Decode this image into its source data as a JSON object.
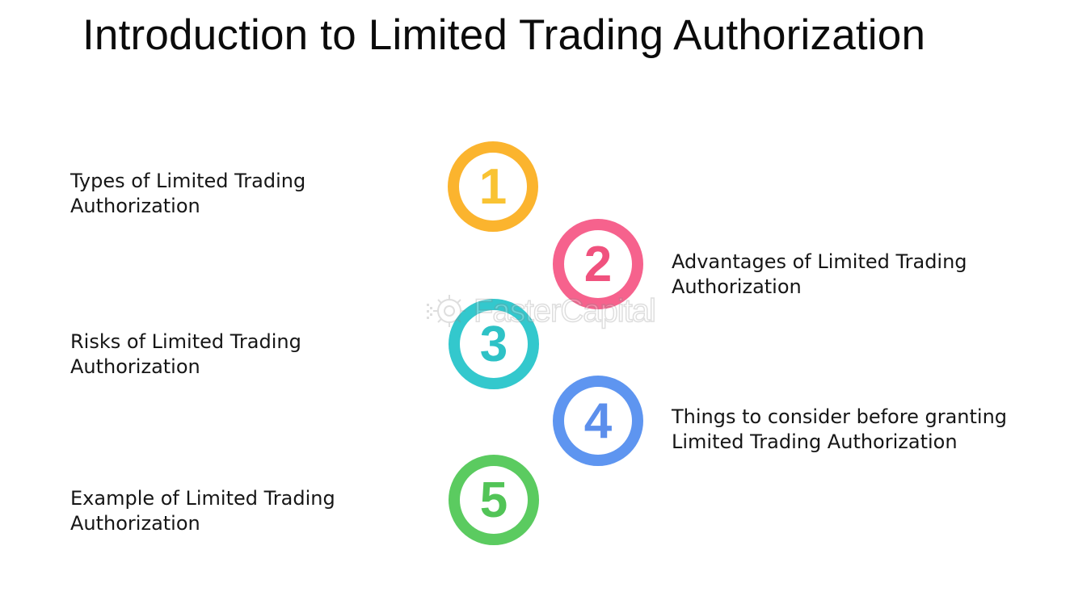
{
  "title": "Introduction to Limited Trading Authorization",
  "steps": [
    {
      "number": "1",
      "text": "Types of Limited Trading\nAuthorization",
      "color": "#FBB42E",
      "number_color": "#F9C333"
    },
    {
      "number": "2",
      "text": "Advantages of Limited Trading\nAuthorization",
      "color": "#F6628D",
      "number_color": "#F0527E"
    },
    {
      "number": "3",
      "text": "Risks of Limited Trading\nAuthorization",
      "color": "#33C8CD",
      "number_color": "#2EC2C6"
    },
    {
      "number": "4",
      "text": "Things to consider before granting\nLimited Trading Authorization",
      "color": "#5E95F0",
      "number_color": "#5C8FEC"
    },
    {
      "number": "5",
      "text": "Example of Limited Trading\nAuthorization",
      "color": "#5BCB60",
      "number_color": "#52C457"
    }
  ],
  "watermark": {
    "text": "FasterCapital",
    "icon": "gear-logo-icon"
  }
}
